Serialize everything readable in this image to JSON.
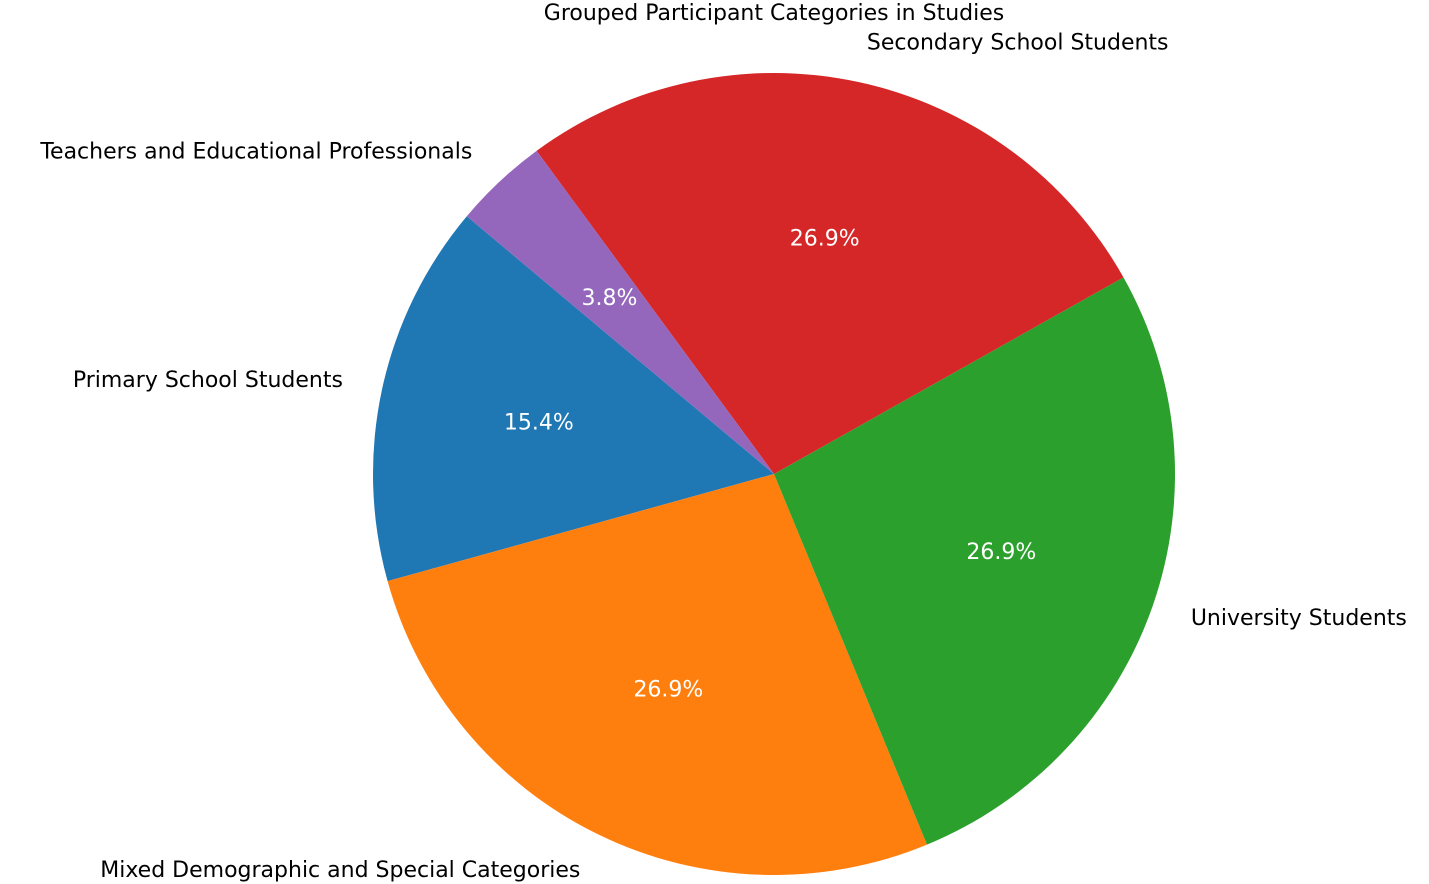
{
  "chart_data": {
    "type": "pie",
    "title": "Grouped Participant Categories in Studies",
    "slices": [
      {
        "label": "Primary School Students",
        "value": 15.4,
        "pct_label": "15.4%",
        "color": "#1f77b4"
      },
      {
        "label": "Mixed Demographic and Special Categories",
        "value": 26.9,
        "pct_label": "26.9%",
        "color": "#ff7f0e"
      },
      {
        "label": "University Students",
        "value": 26.9,
        "pct_label": "26.9%",
        "color": "#2ca02c"
      },
      {
        "label": "Secondary School Students",
        "value": 26.9,
        "pct_label": "26.9%",
        "color": "#d62728"
      },
      {
        "label": "Teachers and Educational Professionals",
        "value": 3.8,
        "pct_label": "3.8%",
        "color": "#9467bd"
      }
    ],
    "start_angle_deg": 140,
    "direction": "counterclockwise",
    "legend": "none"
  }
}
